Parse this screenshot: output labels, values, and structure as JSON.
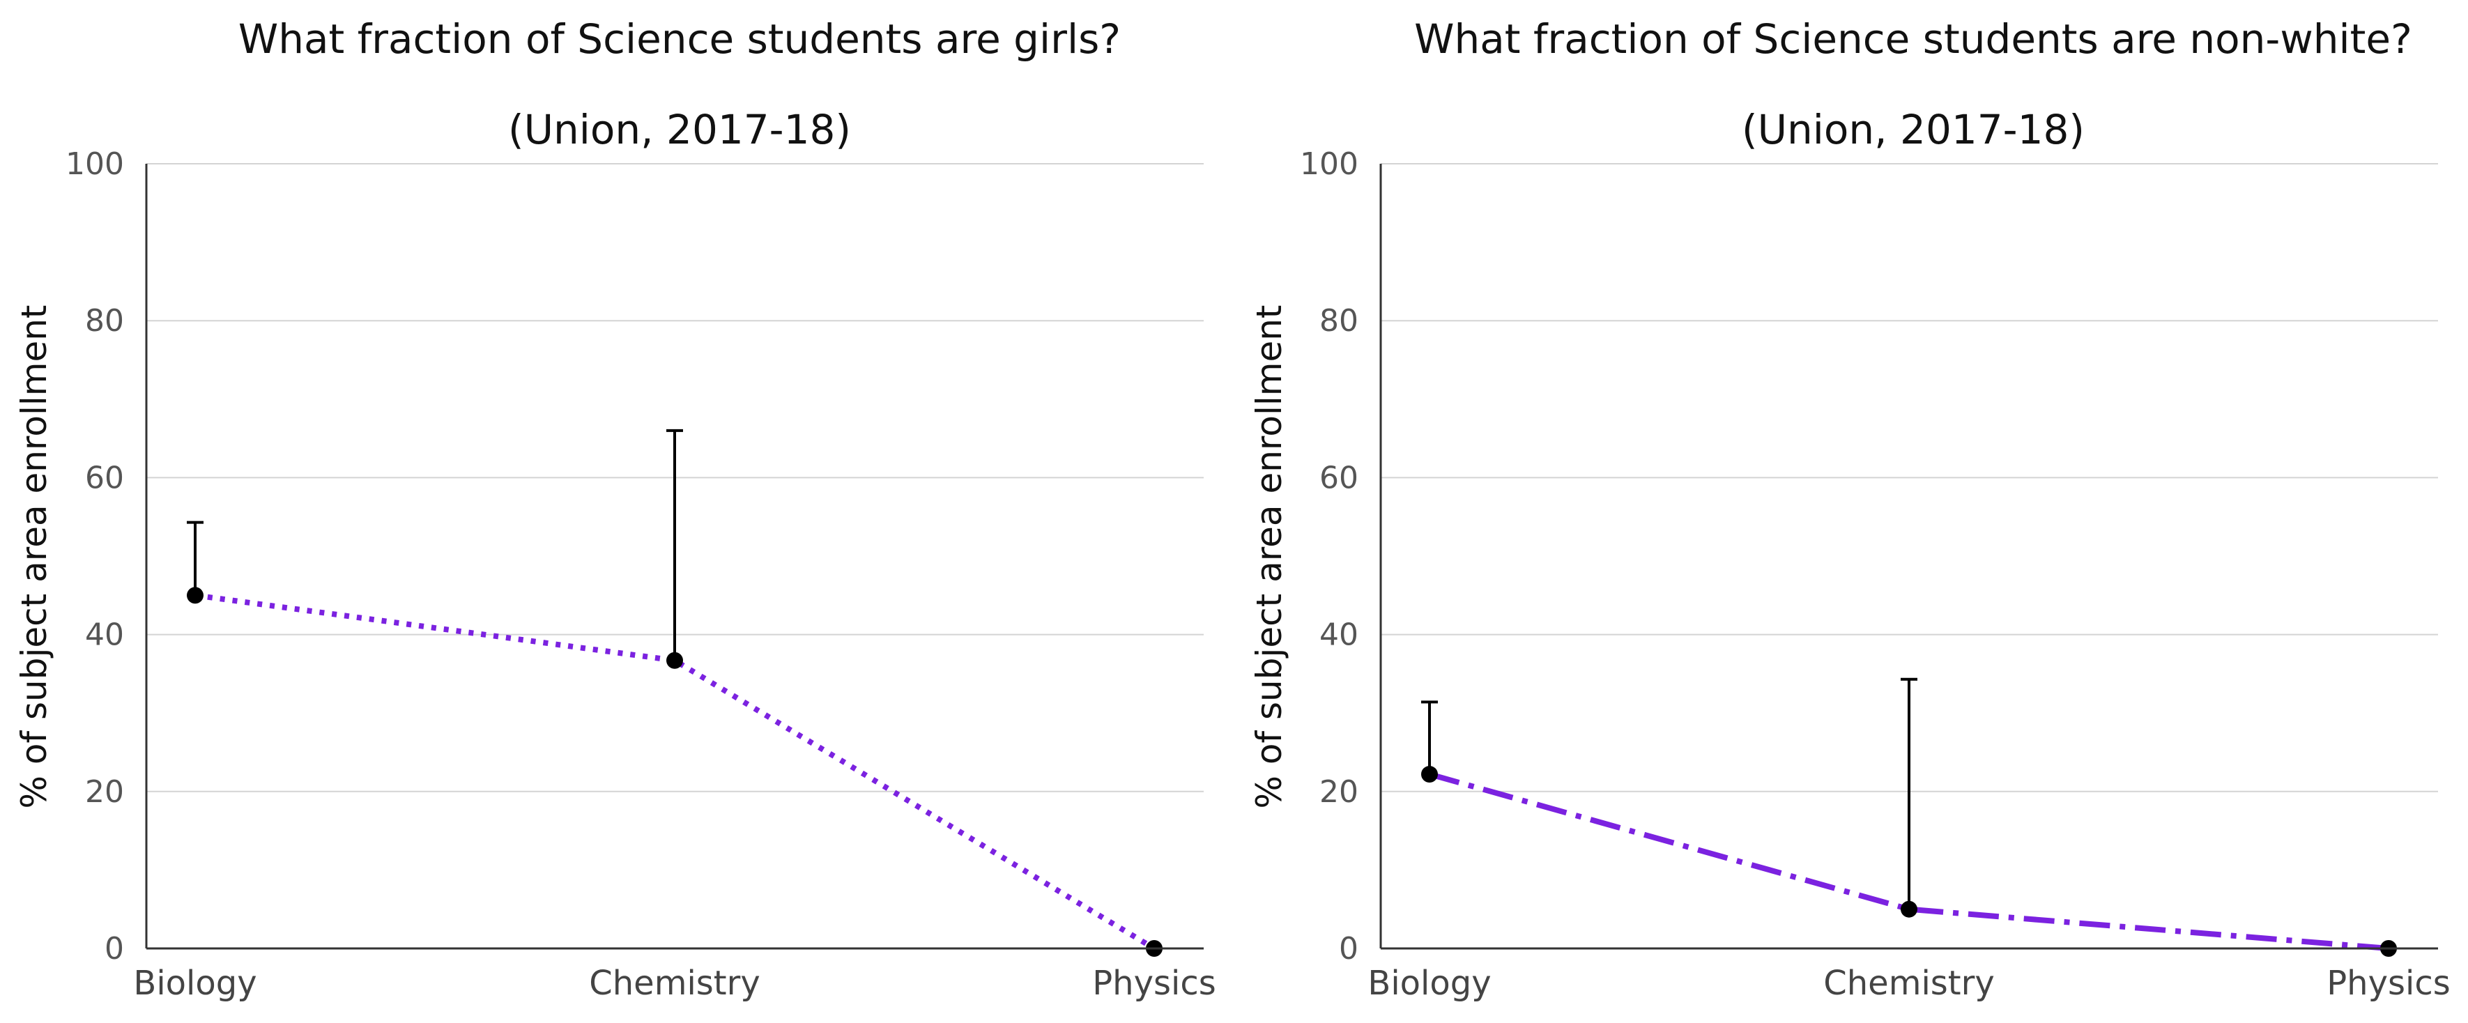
{
  "chart_data": [
    {
      "type": "line",
      "title": "What fraction of Science students are girls?",
      "subtitle": "(Union, 2017-18)",
      "ylabel": "% of subject area enrollment",
      "xlabel": "",
      "categories": [
        "Biology",
        "Chemistry",
        "Physics"
      ],
      "series": [
        {
          "values": [
            45,
            36.7,
            0
          ],
          "error_upper": [
            54.3,
            66,
            0
          ],
          "color": "#7b22e0",
          "line_style": "dotted"
        }
      ],
      "ylim": [
        0,
        100
      ],
      "yticks": [
        "0",
        "20",
        "40",
        "60",
        "80",
        "100"
      ],
      "grid": true,
      "legend": "none"
    },
    {
      "type": "line",
      "title": "What fraction of Science students are non-white?",
      "subtitle": "(Union, 2017-18)",
      "ylabel": "% of subject area enrollment",
      "xlabel": "",
      "categories": [
        "Biology",
        "Chemistry",
        "Physics"
      ],
      "series": [
        {
          "values": [
            22.2,
            5,
            0
          ],
          "error_upper": [
            31.4,
            34.3,
            0
          ],
          "color": "#7b22e0",
          "line_style": "dashdot"
        }
      ],
      "ylim": [
        0,
        100
      ],
      "yticks": [
        "0",
        "20",
        "40",
        "60",
        "80",
        "100"
      ],
      "grid": true,
      "legend": "none"
    }
  ]
}
